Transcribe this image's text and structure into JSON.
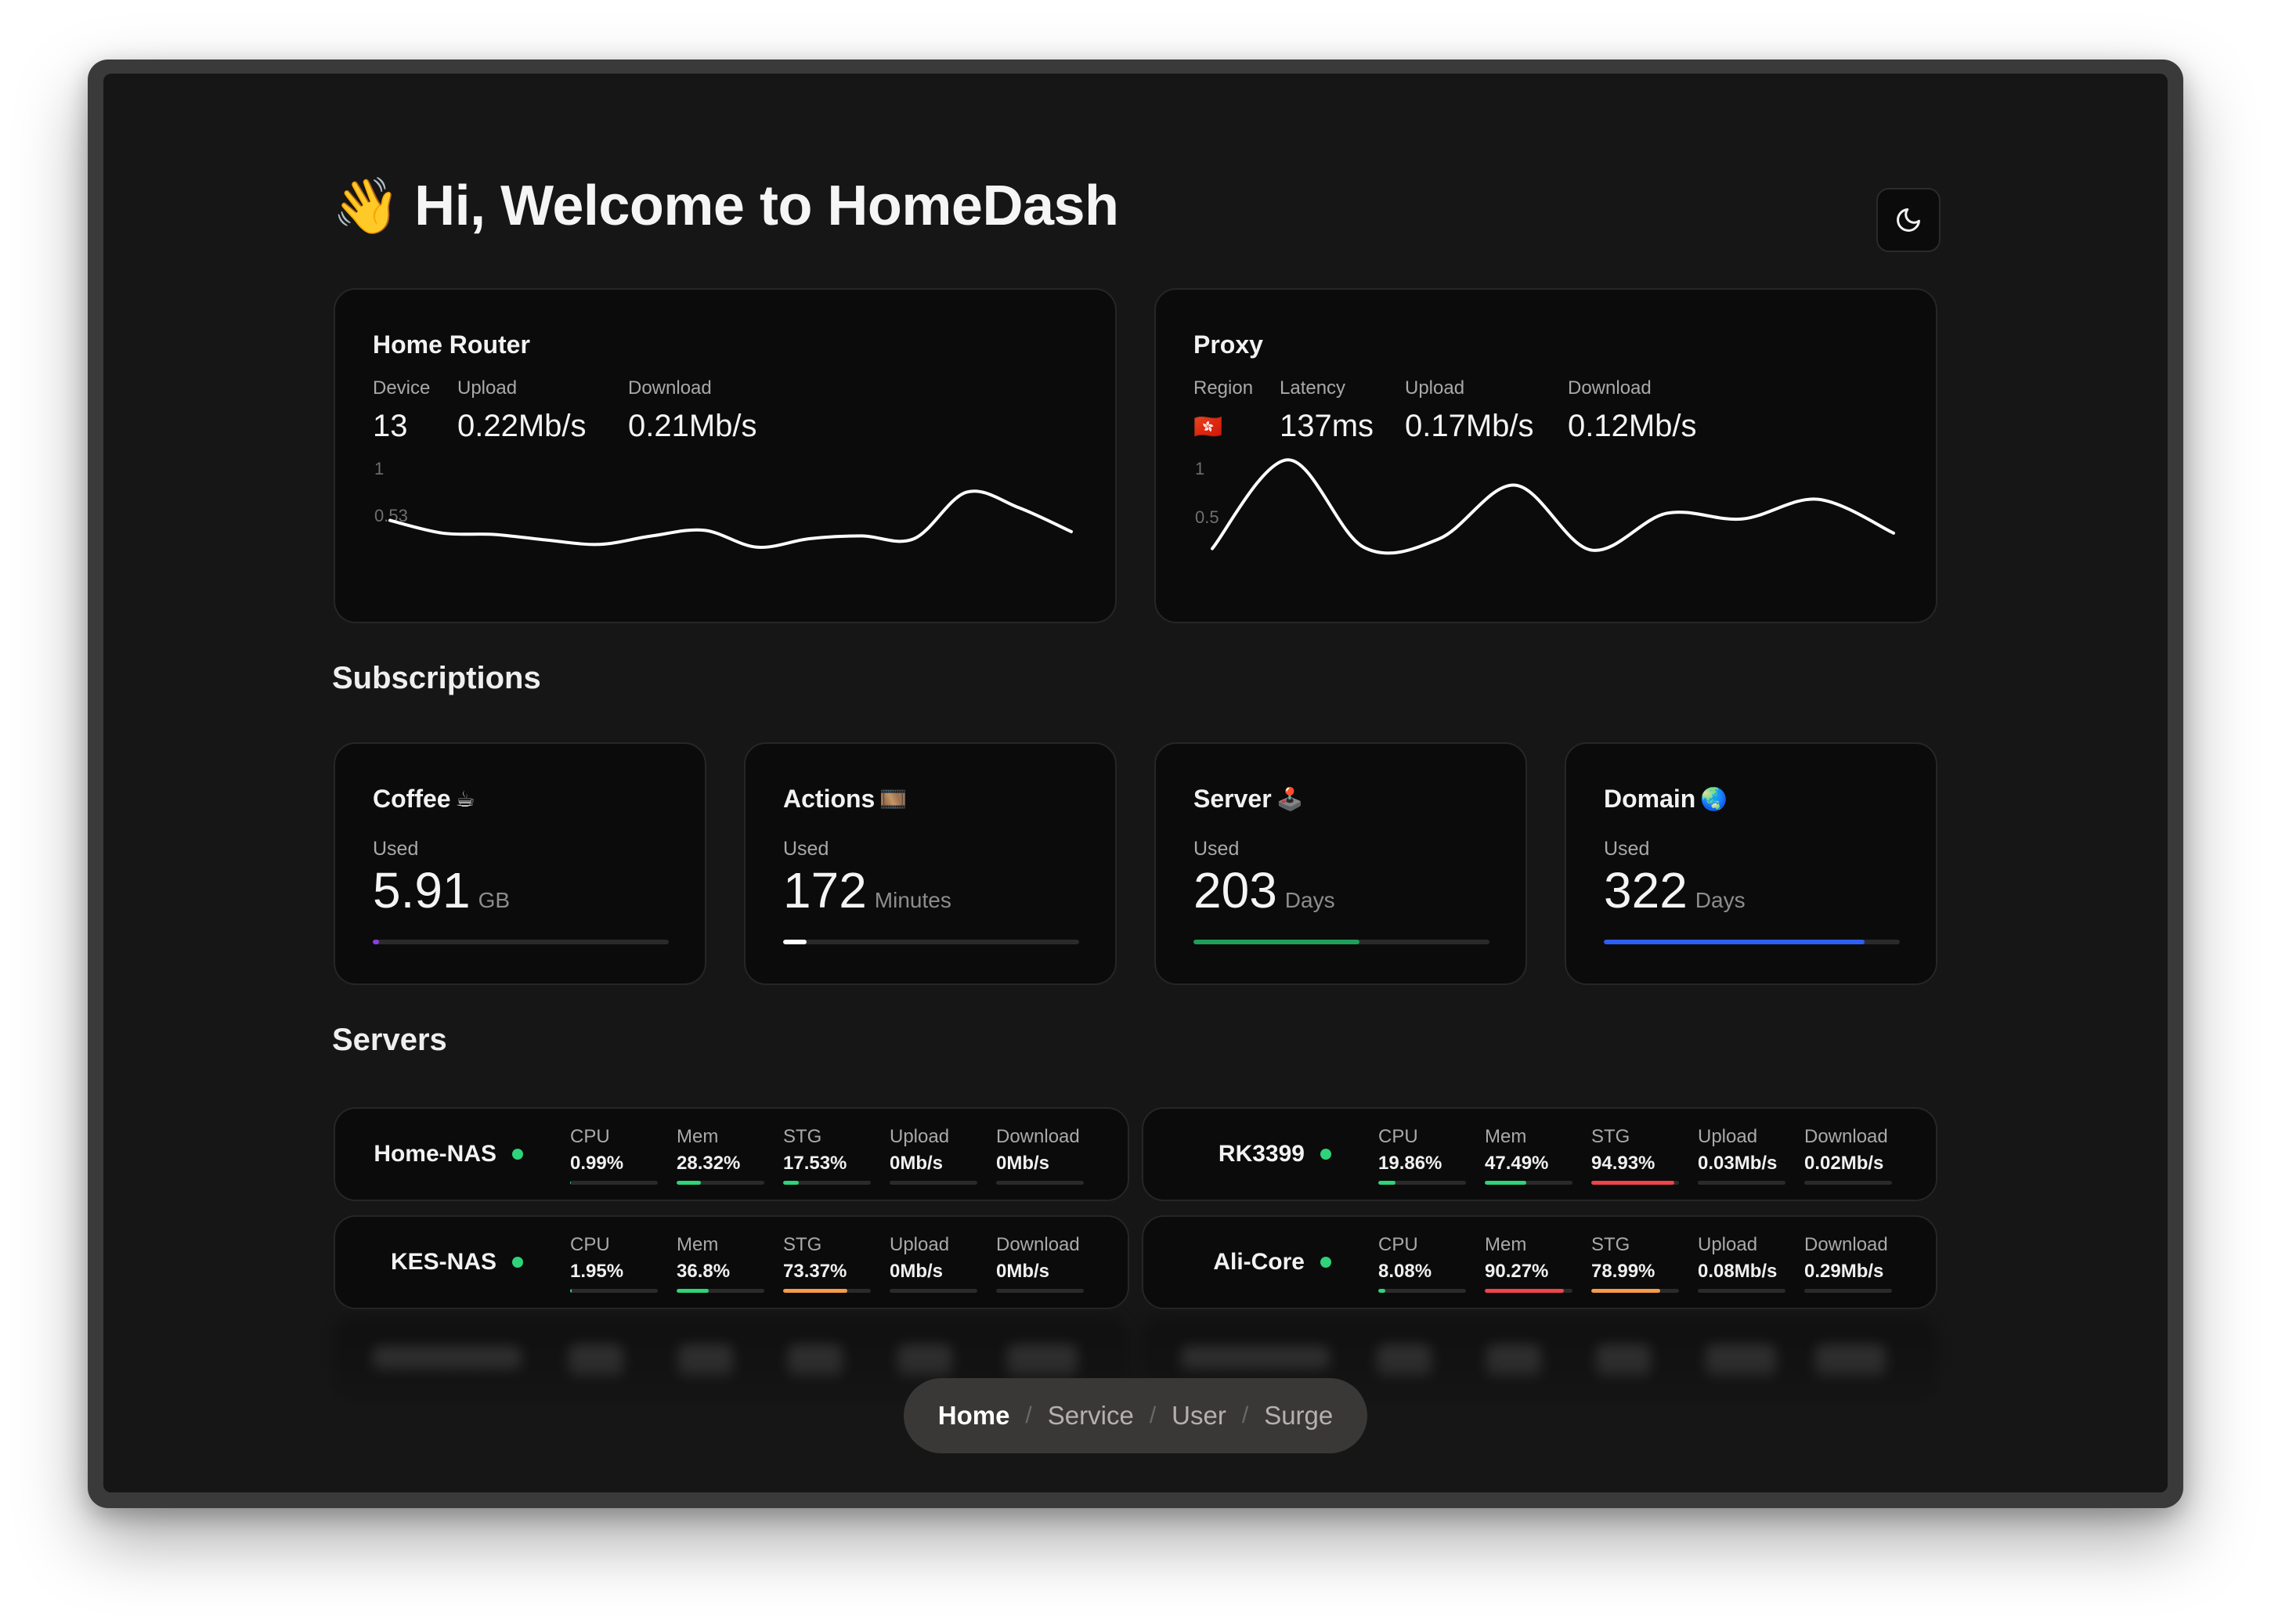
{
  "header": {
    "wave_emoji": "👋",
    "title": "Hi, Welcome to HomeDash",
    "theme_toggle_icon": "moon-icon"
  },
  "home_router": {
    "title": "Home Router",
    "stats": [
      {
        "label": "Device",
        "value": "13"
      },
      {
        "label": "Upload",
        "value": "0.22Mb/s"
      },
      {
        "label": "Download",
        "value": "0.21Mb/s"
      }
    ],
    "chart": {
      "y_top": "1",
      "y_mid": "0.53"
    }
  },
  "proxy": {
    "title": "Proxy",
    "region_label": "Region",
    "region_flag": "🇭🇰",
    "stats": [
      {
        "label": "Latency",
        "value": "137ms"
      },
      {
        "label": "Upload",
        "value": "0.17Mb/s"
      },
      {
        "label": "Download",
        "value": "0.12Mb/s"
      }
    ],
    "chart": {
      "y_top": "1",
      "y_mid": "0.5"
    }
  },
  "chart_data": [
    {
      "type": "line",
      "title": "Home Router",
      "ylim": [
        0,
        1
      ],
      "y_ticks": [
        "1",
        "0.53"
      ],
      "values": [
        0.53,
        0.44,
        0.43,
        0.39,
        0.36,
        0.42,
        0.46,
        0.34,
        0.4,
        0.42,
        0.4,
        0.73,
        0.62,
        0.45
      ]
    },
    {
      "type": "line",
      "title": "Proxy",
      "ylim": [
        0,
        1
      ],
      "y_ticks": [
        "1",
        "0.5"
      ],
      "values": [
        0.33,
        0.96,
        0.34,
        0.4,
        0.78,
        0.32,
        0.58,
        0.54,
        0.68,
        0.44
      ]
    }
  ],
  "subscriptions": {
    "heading": "Subscriptions",
    "used_label": "Used",
    "items": [
      {
        "title": "Coffee",
        "emoji": "☕",
        "value": "5.91",
        "unit": "GB",
        "progress": 0.02,
        "color": "#8b3fe0"
      },
      {
        "title": "Actions",
        "emoji": "🎞️",
        "value": "172",
        "unit": "Minutes",
        "progress": 0.08,
        "color": "#ffffff"
      },
      {
        "title": "Server",
        "emoji": "🕹️",
        "value": "203",
        "unit": "Days",
        "progress": 0.56,
        "color": "#1f9f5a"
      },
      {
        "title": "Domain",
        "emoji": "🌏",
        "value": "322",
        "unit": "Days",
        "progress": 0.88,
        "color": "#2f5ff0"
      }
    ]
  },
  "servers": {
    "heading": "Servers",
    "labels": [
      "CPU",
      "Mem",
      "STG",
      "Upload",
      "Download"
    ],
    "items": [
      {
        "name": "Home-NAS",
        "values": [
          "0.99%",
          "28.32%",
          "17.53%",
          "0Mb/s",
          "0Mb/s"
        ],
        "bars": [
          0.01,
          0.28,
          0.18,
          0,
          0
        ],
        "colors": [
          "#2fd37a",
          "#2fd37a",
          "#2fd37a",
          "#2fd37a",
          "#2fd37a"
        ]
      },
      {
        "name": "RK3399",
        "values": [
          "19.86%",
          "47.49%",
          "94.93%",
          "0.03Mb/s",
          "0.02Mb/s"
        ],
        "bars": [
          0.2,
          0.47,
          0.95,
          0,
          0
        ],
        "colors": [
          "#2fd37a",
          "#2fd37a",
          "#f0444a",
          "#2fd37a",
          "#2fd37a"
        ]
      },
      {
        "name": "KES-NAS",
        "values": [
          "1.95%",
          "36.8%",
          "73.37%",
          "0Mb/s",
          "0Mb/s"
        ],
        "bars": [
          0.02,
          0.37,
          0.73,
          0,
          0
        ],
        "colors": [
          "#2fd37a",
          "#2fd37a",
          "#f59b4a",
          "#2fd37a",
          "#2fd37a"
        ]
      },
      {
        "name": "Ali-Core",
        "values": [
          "8.08%",
          "90.27%",
          "78.99%",
          "0.08Mb/s",
          "0.29Mb/s"
        ],
        "bars": [
          0.08,
          0.9,
          0.79,
          0,
          0
        ],
        "colors": [
          "#2fd37a",
          "#f0444a",
          "#f59b4a",
          "#2fd37a",
          "#2fd37a"
        ]
      }
    ]
  },
  "nav": {
    "items": [
      "Home",
      "Service",
      "User",
      "Surge"
    ],
    "active": "Home",
    "separator": "/"
  }
}
